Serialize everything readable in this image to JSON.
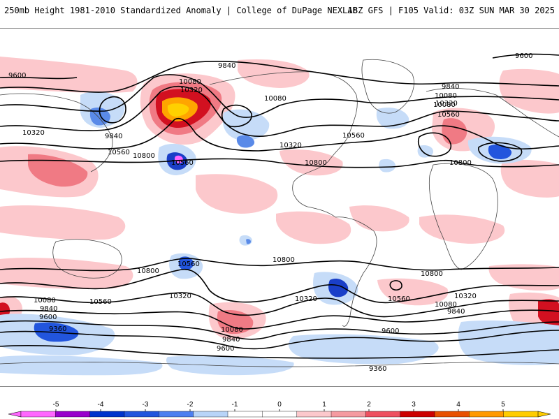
{
  "header": {
    "title": "250mb Height 1981-2010 Standardized Anomaly | College of DuPage NEXLAB",
    "run_info": "18Z GFS | F105 Valid: 03Z SUN MAR 30 2025"
  },
  "contour_labels": [
    "9600",
    "9840",
    "10080",
    "10320",
    "10080",
    "10320",
    "9840",
    "10560",
    "10800",
    "10560",
    "10080",
    "10560",
    "10320",
    "10800",
    "10800",
    "9840",
    "10080",
    "10320",
    "10560",
    "10800",
    "9600",
    "10560",
    "10800",
    "10800",
    "10800",
    "10560",
    "10320",
    "10560",
    "10080",
    "10320",
    "9840",
    "10080",
    "9600",
    "9840",
    "9360",
    "10080",
    "9840",
    "9600",
    "9600",
    "9360"
  ],
  "legend": {
    "ticks": [
      "-5",
      "-4",
      "-3",
      "-2",
      "-1",
      "0",
      "1",
      "2",
      "3",
      "4",
      "5"
    ],
    "colors": [
      "#ff66ff",
      "#9900cc",
      "#0033cc",
      "#2255dd",
      "#4d7ff0",
      "#b8d4f8",
      "#ffffff",
      "#ffffff",
      "#fcc8cc",
      "#f59aa0",
      "#ee5060",
      "#cc0000",
      "#e85000",
      "#ff9900",
      "#ffcc00"
    ]
  },
  "colors": {
    "neg_light": "#c6dcf8",
    "neg_mid": "#5a8ae8",
    "neg_strong": "#1a3fc8",
    "pos_light": "#fcc8cc",
    "pos_mid": "#f07a84",
    "pos_strong": "#d21020",
    "pos_max": "#ffa500",
    "pos_extreme": "#ffd000"
  }
}
